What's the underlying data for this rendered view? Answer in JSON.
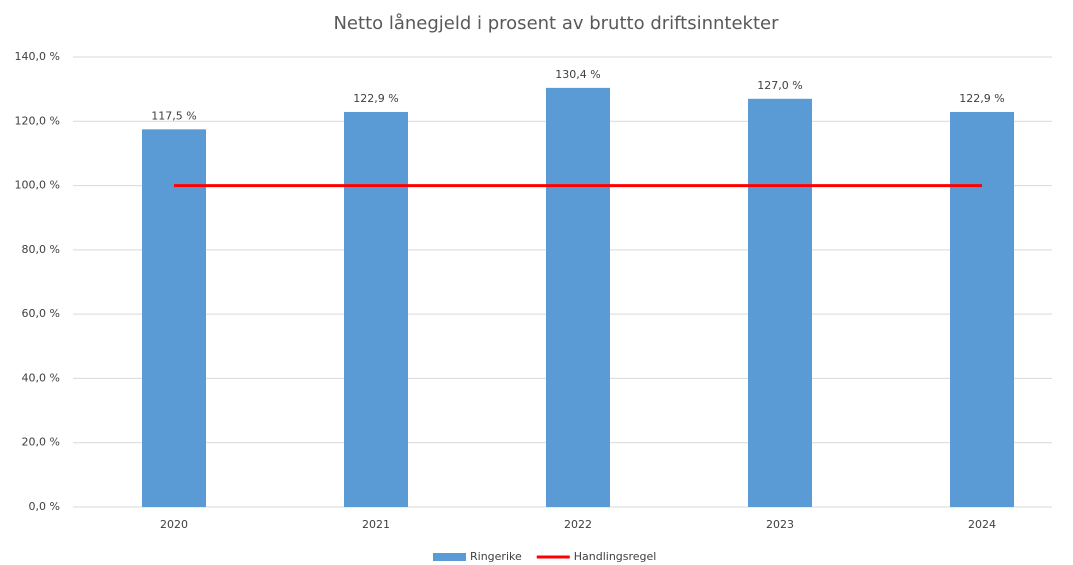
{
  "chart_data": {
    "type": "bar",
    "title": "Netto lånegjeld i prosent av brutto driftsinntekter",
    "categories": [
      "2020",
      "2021",
      "2022",
      "2023",
      "2024"
    ],
    "series": [
      {
        "name": "Ringerike",
        "type": "bar",
        "color": "#5b9bd5",
        "values": [
          117.5,
          122.9,
          130.4,
          127.0,
          122.9
        ],
        "value_labels": [
          "117,5 %",
          "122,9 %",
          "130,4 %",
          "127,0 %",
          "122,9 %"
        ]
      },
      {
        "name": "Handlingsregel",
        "type": "line",
        "color": "#ff0000",
        "values": [
          100,
          100,
          100,
          100,
          100
        ]
      }
    ],
    "ylim": [
      0,
      140
    ],
    "yticks": [
      {
        "value": 0,
        "label": "0,0 %"
      },
      {
        "value": 20,
        "label": "20,0 %"
      },
      {
        "value": 40,
        "label": "40,0 %"
      },
      {
        "value": 60,
        "label": "60,0 %"
      },
      {
        "value": 80,
        "label": "80,0 %"
      },
      {
        "value": 100,
        "label": "100,0 %"
      },
      {
        "value": 120,
        "label": "120,0 %"
      },
      {
        "value": 140,
        "label": "140,0 %"
      }
    ],
    "grid": true,
    "legend": "bottom"
  }
}
